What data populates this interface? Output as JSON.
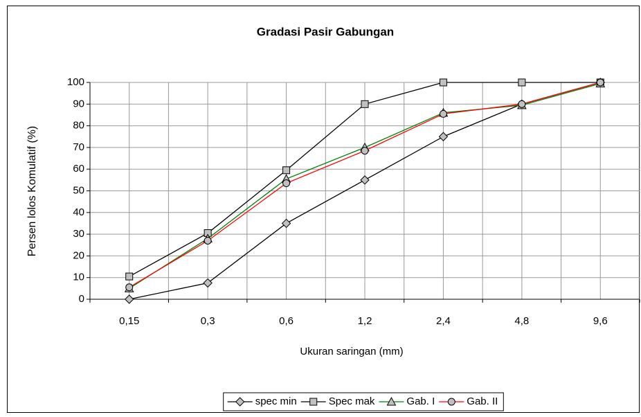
{
  "chart_data": {
    "type": "line",
    "title": "Gradasi Pasir Gabungan",
    "x_label": "Ukuran saringan (mm)",
    "y_label": "Persen lolos Komulatif (%)",
    "categories": [
      "0,15",
      "0,3",
      "0,6",
      "1,2",
      "2,4",
      "4,8",
      "9,6"
    ],
    "series": [
      {
        "name": "spec min",
        "color": "#000000",
        "marker": "diamond",
        "values": [
          0,
          7.5,
          35,
          55,
          75,
          90,
          100
        ]
      },
      {
        "name": "Spec mak",
        "color": "#000000",
        "marker": "square",
        "values": [
          10.5,
          30.5,
          59.5,
          90,
          100,
          100,
          100
        ]
      },
      {
        "name": "Gab. I",
        "color": "#008000",
        "marker": "triangle",
        "values": [
          5,
          28,
          55.5,
          70,
          86,
          89.5,
          99.5
        ]
      },
      {
        "name": "Gab. II",
        "color": "#ff0000",
        "marker": "circle",
        "values": [
          5.5,
          27,
          53.5,
          68.5,
          85.5,
          90,
          100
        ]
      }
    ],
    "ylim": [
      0,
      100
    ],
    "yticks": [
      0,
      10,
      20,
      30,
      40,
      50,
      60,
      70,
      80,
      90,
      100
    ],
    "grid": true,
    "legend": "bottom"
  }
}
